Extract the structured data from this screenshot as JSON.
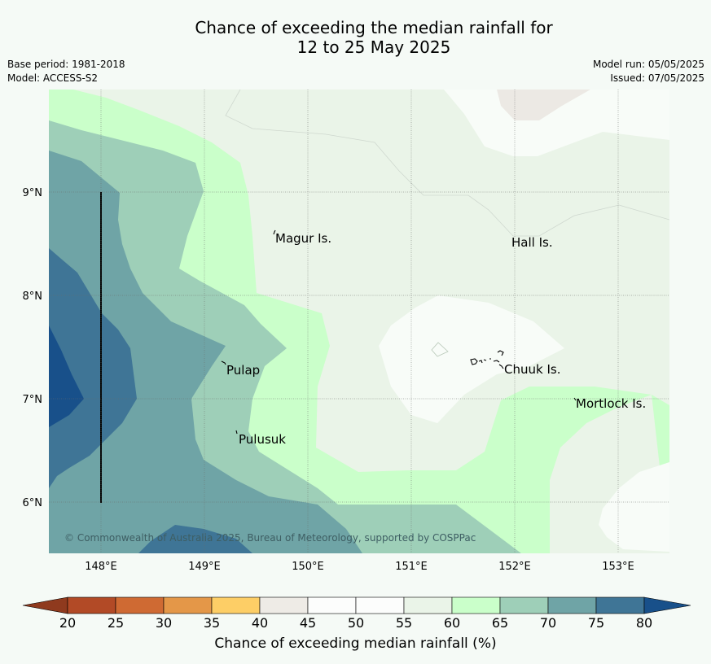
{
  "title": {
    "line1": "Chance of exceeding the median rainfall for",
    "line2": "12 to 25 May 2025"
  },
  "meta": {
    "base_period": "Base period: 1981-2018",
    "model": "Model: ACCESS-S2",
    "model_run": "Model run: 05/05/2025",
    "issued": "Issued: 07/05/2025"
  },
  "map": {
    "x_ticks": [
      "148°E",
      "149°E",
      "150°E",
      "151°E",
      "152°E",
      "153°E"
    ],
    "y_ticks": [
      "9°N",
      "8°N",
      "7°N",
      "6°N"
    ],
    "places": [
      {
        "name": "Magur Is."
      },
      {
        "name": "Hall Is."
      },
      {
        "name": "Pulap"
      },
      {
        "name": "Chuuk Is."
      },
      {
        "name": "Mortlock Is."
      },
      {
        "name": "Pulusuk"
      }
    ],
    "copyright": "© Commonwealth of Australia 2025, Bureau of Meteorology, supported by COSPPac"
  },
  "colorbar": {
    "label": "Chance of exceeding median rainfall (%)",
    "ticks": [
      "20",
      "25",
      "30",
      "35",
      "40",
      "45",
      "50",
      "55",
      "60",
      "65",
      "70",
      "75",
      "80"
    ],
    "colors": [
      "#8f3a1e",
      "#b24a26",
      "#cf6a33",
      "#e49748",
      "#fdce66",
      "#eeebe6",
      "#fcfdfc",
      "#fcfdfc",
      "#eaf4e8",
      "#caffca",
      "#9ecfb8",
      "#6fa4a6",
      "#3f7596",
      "#18508a"
    ]
  }
}
